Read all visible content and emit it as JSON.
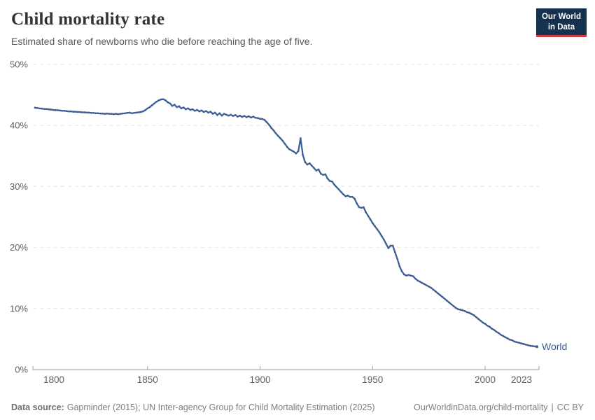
{
  "header": {
    "title": "Child mortality rate",
    "subtitle": "Estimated share of newborns who die before reaching the age of five."
  },
  "logo": {
    "line1": "Our World",
    "line2": "in Data",
    "bg_color": "#16304f",
    "accent_color": "#cf3e3e"
  },
  "footer": {
    "source_label": "Data source:",
    "source_text": "Gapminder (2015); UN Inter-agency Group for Child Mortality Estimation (2025)",
    "link_text": "OurWorldinData.org/child-mortality",
    "separator": "|",
    "license": "CC BY"
  },
  "chart_data": {
    "type": "line",
    "title": "Child mortality rate",
    "subtitle": "Estimated share of newborns who die before reaching the age of five.",
    "xlabel": "",
    "ylabel": "",
    "xlim": [
      1800,
      2023
    ],
    "ylim": [
      0,
      50
    ],
    "x_ticks": [
      1800,
      1850,
      1900,
      1950,
      2000,
      2023
    ],
    "y_ticks": [
      0,
      10,
      20,
      30,
      40,
      50
    ],
    "y_tick_suffix": "%",
    "grid": "dashed-horizontal",
    "grid_color": "#e3e3e3",
    "axis_color": "#9a9a9a",
    "tick_label_color": "#5e5e5e",
    "series": [
      {
        "name": "World",
        "color": "#3d5c94",
        "points": [
          [
            1800,
            42.9
          ],
          [
            1801,
            42.85
          ],
          [
            1802,
            42.8
          ],
          [
            1803,
            42.75
          ],
          [
            1804,
            42.7
          ],
          [
            1805,
            42.7
          ],
          [
            1806,
            42.65
          ],
          [
            1807,
            42.6
          ],
          [
            1808,
            42.55
          ],
          [
            1809,
            42.5
          ],
          [
            1810,
            42.5
          ],
          [
            1811,
            42.45
          ],
          [
            1812,
            42.4
          ],
          [
            1813,
            42.4
          ],
          [
            1814,
            42.35
          ],
          [
            1815,
            42.3
          ],
          [
            1816,
            42.3
          ],
          [
            1817,
            42.25
          ],
          [
            1818,
            42.25
          ],
          [
            1819,
            42.2
          ],
          [
            1820,
            42.2
          ],
          [
            1821,
            42.15
          ],
          [
            1822,
            42.15
          ],
          [
            1823,
            42.1
          ],
          [
            1824,
            42.1
          ],
          [
            1825,
            42.05
          ],
          [
            1826,
            42.05
          ],
          [
            1827,
            42.0
          ],
          [
            1828,
            42.0
          ],
          [
            1829,
            41.95
          ],
          [
            1830,
            41.95
          ],
          [
            1831,
            41.9
          ],
          [
            1832,
            41.95
          ],
          [
            1833,
            41.9
          ],
          [
            1834,
            41.9
          ],
          [
            1835,
            41.85
          ],
          [
            1836,
            41.9
          ],
          [
            1837,
            41.85
          ],
          [
            1838,
            41.9
          ],
          [
            1839,
            41.95
          ],
          [
            1840,
            42.0
          ],
          [
            1841,
            42.05
          ],
          [
            1842,
            42.1
          ],
          [
            1843,
            42.0
          ],
          [
            1844,
            42.05
          ],
          [
            1845,
            42.1
          ],
          [
            1846,
            42.15
          ],
          [
            1847,
            42.2
          ],
          [
            1848,
            42.3
          ],
          [
            1849,
            42.5
          ],
          [
            1850,
            42.8
          ],
          [
            1851,
            43.0
          ],
          [
            1852,
            43.3
          ],
          [
            1853,
            43.6
          ],
          [
            1854,
            43.9
          ],
          [
            1855,
            44.1
          ],
          [
            1856,
            44.25
          ],
          [
            1857,
            44.3
          ],
          [
            1858,
            44.1
          ],
          [
            1859,
            43.8
          ],
          [
            1860,
            43.6
          ],
          [
            1861,
            43.2
          ],
          [
            1862,
            43.4
          ],
          [
            1863,
            43.0
          ],
          [
            1864,
            43.15
          ],
          [
            1865,
            42.8
          ],
          [
            1866,
            42.95
          ],
          [
            1867,
            42.65
          ],
          [
            1868,
            42.8
          ],
          [
            1869,
            42.55
          ],
          [
            1870,
            42.65
          ],
          [
            1871,
            42.4
          ],
          [
            1872,
            42.55
          ],
          [
            1873,
            42.3
          ],
          [
            1874,
            42.45
          ],
          [
            1875,
            42.2
          ],
          [
            1876,
            42.35
          ],
          [
            1877,
            42.1
          ],
          [
            1878,
            42.25
          ],
          [
            1879,
            41.9
          ],
          [
            1880,
            42.1
          ],
          [
            1881,
            41.7
          ],
          [
            1882,
            42.0
          ],
          [
            1883,
            41.6
          ],
          [
            1884,
            41.9
          ],
          [
            1885,
            41.75
          ],
          [
            1886,
            41.6
          ],
          [
            1887,
            41.75
          ],
          [
            1888,
            41.55
          ],
          [
            1889,
            41.7
          ],
          [
            1890,
            41.45
          ],
          [
            1891,
            41.6
          ],
          [
            1892,
            41.4
          ],
          [
            1893,
            41.55
          ],
          [
            1894,
            41.35
          ],
          [
            1895,
            41.5
          ],
          [
            1896,
            41.3
          ],
          [
            1897,
            41.45
          ],
          [
            1898,
            41.25
          ],
          [
            1899,
            41.2
          ],
          [
            1900,
            41.1
          ],
          [
            1901,
            41.05
          ],
          [
            1902,
            40.9
          ],
          [
            1903,
            40.5
          ],
          [
            1904,
            40.1
          ],
          [
            1905,
            39.6
          ],
          [
            1906,
            39.2
          ],
          [
            1907,
            38.7
          ],
          [
            1908,
            38.3
          ],
          [
            1909,
            37.9
          ],
          [
            1910,
            37.5
          ],
          [
            1911,
            37.0
          ],
          [
            1912,
            36.5
          ],
          [
            1913,
            36.1
          ],
          [
            1914,
            35.9
          ],
          [
            1915,
            35.7
          ],
          [
            1916,
            35.4
          ],
          [
            1917,
            35.8
          ],
          [
            1918,
            37.9
          ],
          [
            1919,
            35.2
          ],
          [
            1920,
            34.0
          ],
          [
            1921,
            33.6
          ],
          [
            1922,
            33.8
          ],
          [
            1923,
            33.4
          ],
          [
            1924,
            33.0
          ],
          [
            1925,
            32.6
          ],
          [
            1926,
            32.8
          ],
          [
            1927,
            32.1
          ],
          [
            1928,
            31.9
          ],
          [
            1929,
            32.0
          ],
          [
            1930,
            31.3
          ],
          [
            1931,
            30.9
          ],
          [
            1932,
            30.8
          ],
          [
            1933,
            30.3
          ],
          [
            1934,
            29.9
          ],
          [
            1935,
            29.5
          ],
          [
            1936,
            29.1
          ],
          [
            1937,
            28.7
          ],
          [
            1938,
            28.4
          ],
          [
            1939,
            28.5
          ],
          [
            1940,
            28.3
          ],
          [
            1941,
            28.3
          ],
          [
            1942,
            28.0
          ],
          [
            1943,
            27.2
          ],
          [
            1944,
            26.6
          ],
          [
            1945,
            26.5
          ],
          [
            1946,
            26.6
          ],
          [
            1947,
            25.8
          ],
          [
            1948,
            25.2
          ],
          [
            1949,
            24.6
          ],
          [
            1950,
            24.0
          ],
          [
            1951,
            23.5
          ],
          [
            1952,
            23.0
          ],
          [
            1953,
            22.5
          ],
          [
            1954,
            21.9
          ],
          [
            1955,
            21.3
          ],
          [
            1956,
            20.6
          ],
          [
            1957,
            19.9
          ],
          [
            1958,
            20.3
          ],
          [
            1959,
            20.3
          ],
          [
            1960,
            19.2
          ],
          [
            1961,
            18.1
          ],
          [
            1962,
            16.9
          ],
          [
            1963,
            16.1
          ],
          [
            1964,
            15.6
          ],
          [
            1965,
            15.4
          ],
          [
            1966,
            15.5
          ],
          [
            1967,
            15.4
          ],
          [
            1968,
            15.3
          ],
          [
            1969,
            14.9
          ],
          [
            1970,
            14.6
          ],
          [
            1971,
            14.4
          ],
          [
            1972,
            14.2
          ],
          [
            1973,
            14.0
          ],
          [
            1974,
            13.8
          ],
          [
            1975,
            13.6
          ],
          [
            1976,
            13.4
          ],
          [
            1977,
            13.1
          ],
          [
            1978,
            12.8
          ],
          [
            1979,
            12.5
          ],
          [
            1980,
            12.2
          ],
          [
            1981,
            11.9
          ],
          [
            1982,
            11.6
          ],
          [
            1983,
            11.3
          ],
          [
            1984,
            11.0
          ],
          [
            1985,
            10.7
          ],
          [
            1986,
            10.4
          ],
          [
            1987,
            10.1
          ],
          [
            1988,
            9.9
          ],
          [
            1989,
            9.8
          ],
          [
            1990,
            9.7
          ],
          [
            1991,
            9.6
          ],
          [
            1992,
            9.4
          ],
          [
            1993,
            9.3
          ],
          [
            1994,
            9.1
          ],
          [
            1995,
            8.9
          ],
          [
            1996,
            8.6
          ],
          [
            1997,
            8.3
          ],
          [
            1998,
            8.0
          ],
          [
            1999,
            7.7
          ],
          [
            2000,
            7.5
          ],
          [
            2001,
            7.2
          ],
          [
            2002,
            7.0
          ],
          [
            2003,
            6.7
          ],
          [
            2004,
            6.5
          ],
          [
            2005,
            6.2
          ],
          [
            2006,
            6.0
          ],
          [
            2007,
            5.7
          ],
          [
            2008,
            5.5
          ],
          [
            2009,
            5.3
          ],
          [
            2010,
            5.1
          ],
          [
            2011,
            4.9
          ],
          [
            2012,
            4.8
          ],
          [
            2013,
            4.6
          ],
          [
            2014,
            4.5
          ],
          [
            2015,
            4.4
          ],
          [
            2016,
            4.3
          ],
          [
            2017,
            4.2
          ],
          [
            2018,
            4.1
          ],
          [
            2019,
            4.0
          ],
          [
            2020,
            3.9
          ],
          [
            2021,
            3.85
          ],
          [
            2022,
            3.8
          ],
          [
            2023,
            3.75
          ]
        ]
      }
    ],
    "legend_position": "end-of-line-label"
  }
}
